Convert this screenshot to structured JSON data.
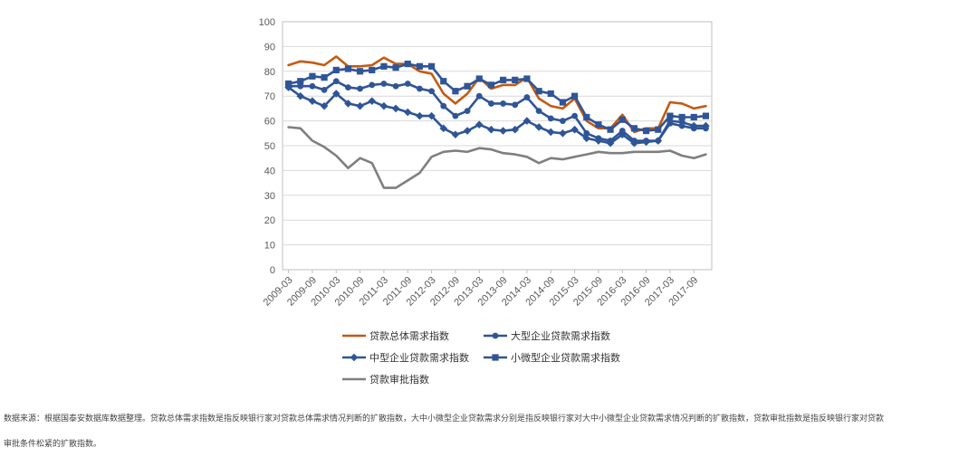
{
  "chart_data": {
    "type": "line",
    "ylim": [
      0,
      100
    ],
    "yticks": [
      0,
      10,
      20,
      30,
      40,
      50,
      60,
      70,
      80,
      90,
      100
    ],
    "grid": true,
    "legend_position": "bottom",
    "x": [
      "2009-03",
      "2009-06",
      "2009-09",
      "2009-12",
      "2010-03",
      "2010-06",
      "2010-09",
      "2010-12",
      "2011-03",
      "2011-06",
      "2011-09",
      "2011-12",
      "2012-03",
      "2012-06",
      "2012-09",
      "2012-12",
      "2013-03",
      "2013-06",
      "2013-09",
      "2013-12",
      "2014-03",
      "2014-06",
      "2014-09",
      "2014-12",
      "2015-03",
      "2015-06",
      "2015-09",
      "2015-12",
      "2016-03",
      "2016-06",
      "2016-09",
      "2016-12",
      "2017-03",
      "2017-06",
      "2017-09",
      "2017-12"
    ],
    "xtick_labels": [
      "2009-03",
      "2009-09",
      "2010-03",
      "2010-09",
      "2011-03",
      "2011-09",
      "2012-03",
      "2012-09",
      "2013-03",
      "2013-09",
      "2014-03",
      "2014-09",
      "2015-03",
      "2015-09",
      "2016-03",
      "2016-09",
      "2017-03",
      "2017-09"
    ],
    "series": [
      {
        "name": "贷款总体需求指数",
        "color": "#c55a11",
        "marker": "none",
        "values": [
          82.5,
          84,
          83.5,
          82.5,
          86,
          82,
          82,
          82.5,
          85.5,
          83,
          83,
          80,
          79,
          71,
          67,
          71,
          77.5,
          73,
          74.5,
          74.5,
          77.5,
          69,
          66,
          65,
          69,
          60,
          57,
          57,
          62.5,
          55.5,
          57,
          57,
          67.5,
          67,
          65,
          66
        ]
      },
      {
        "name": "大型企业贷款需求指数",
        "color": "#2f5597",
        "marker": "circle",
        "values": [
          74,
          74,
          74,
          72.5,
          76,
          73.5,
          73,
          74.5,
          75,
          74,
          75,
          73,
          72,
          66,
          62,
          64,
          70,
          67,
          67,
          66.5,
          69.5,
          64,
          61,
          60,
          62,
          55,
          53,
          52,
          56,
          52,
          52,
          52,
          59,
          58,
          57,
          57
        ]
      },
      {
        "name": "中型企业贷款需求指数",
        "color": "#2f5597",
        "marker": "diamond",
        "values": [
          73.5,
          70,
          68,
          66,
          71,
          67,
          66,
          68,
          66,
          65,
          63.5,
          62,
          62,
          57,
          54.5,
          56,
          58.5,
          56.5,
          56,
          56.5,
          60,
          57.5,
          55.5,
          55,
          56.5,
          53,
          52,
          51,
          54.5,
          51,
          51.5,
          52,
          60,
          59.5,
          58,
          58
        ]
      },
      {
        "name": "小微型企业贷款需求指数",
        "color": "#2f5597",
        "marker": "square",
        "values": [
          75,
          76,
          78,
          77.5,
          80.5,
          81,
          80,
          80.5,
          82,
          81.5,
          83,
          82,
          82,
          76,
          72,
          74,
          77,
          74.5,
          76.5,
          76.5,
          77,
          72,
          71,
          67.5,
          70,
          61.5,
          58.5,
          56.5,
          60.5,
          57,
          56,
          56.5,
          62,
          61.5,
          61.5,
          62
        ]
      },
      {
        "name": "贷款审批指数",
        "color": "#7f7f7f",
        "marker": "none",
        "values": [
          57.5,
          57,
          52,
          49.5,
          46,
          41,
          45,
          43,
          33,
          33,
          36,
          39,
          45.5,
          47.5,
          48,
          47.5,
          49,
          48.5,
          47,
          46.5,
          45.5,
          43,
          45,
          44.5,
          45.5,
          46.5,
          47.5,
          47,
          47,
          47.5,
          47.5,
          47.5,
          48,
          46,
          45,
          46.5
        ]
      }
    ]
  },
  "footnote": {
    "line1": "数据来源：根据国泰安数据库数据整理。贷款总体需求指数是指反映银行家对贷款总体需求情况判断的扩散指数，大中小微型企业贷款需求分别是指反映银行家对大中小微型企业贷款需求情况判断的扩散指数，贷款审批指数是指反映银行家对贷款",
    "line2": "审批条件松紧的扩散指数。"
  }
}
